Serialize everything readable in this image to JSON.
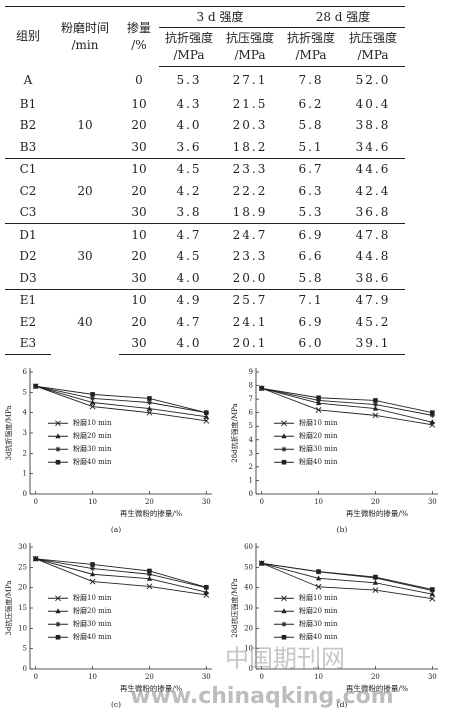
{
  "table": {
    "header": {
      "group": "组别",
      "time": "粉磨时间\n/min",
      "dosage": "掺量\n/%",
      "d3": "3 d 强度",
      "d28": "28 d 强度",
      "columns": [
        "抗折强度\n/MPa",
        "抗压强度\n/MPa",
        "抗折强度\n/MPa",
        "抗压强度\n/MPa"
      ]
    },
    "groups": [
      {
        "rows": [
          [
            "A",
            "0",
            "5.3",
            "27.1",
            "7.8",
            "52.0"
          ]
        ]
      },
      {
        "time": "10",
        "rows": [
          [
            "B1",
            "10",
            "4.3",
            "21.5",
            "6.2",
            "40.4"
          ],
          [
            "B2",
            "20",
            "4.0",
            "20.3",
            "5.8",
            "38.8"
          ],
          [
            "B3",
            "30",
            "3.6",
            "18.2",
            "5.1",
            "34.6"
          ]
        ]
      },
      {
        "time": "20",
        "rows": [
          [
            "C1",
            "10",
            "4.5",
            "23.3",
            "6.7",
            "44.6"
          ],
          [
            "C2",
            "20",
            "4.2",
            "22.2",
            "6.3",
            "42.4"
          ],
          [
            "C3",
            "30",
            "3.8",
            "18.9",
            "5.3",
            "36.8"
          ]
        ]
      },
      {
        "time": "30",
        "rows": [
          [
            "D1",
            "10",
            "4.7",
            "24.7",
            "6.9",
            "47.8"
          ],
          [
            "D2",
            "20",
            "4.5",
            "23.3",
            "6.6",
            "44.8"
          ],
          [
            "D3",
            "30",
            "4.0",
            "20.0",
            "5.8",
            "38.6"
          ]
        ]
      },
      {
        "time": "40",
        "rows": [
          [
            "E1",
            "10",
            "4.9",
            "25.7",
            "7.1",
            "47.9"
          ],
          [
            "E2",
            "20",
            "4.7",
            "24.1",
            "6.9",
            "45.2"
          ],
          [
            "E3",
            "30",
            "4.0",
            "20.1",
            "6.0",
            "39.1"
          ]
        ]
      }
    ]
  },
  "chart_data": [
    {
      "type": "line",
      "caption": "(a)",
      "x_label": "再生微粉的掺量/%",
      "y_label": "3d抗折强度/MPa",
      "x": [
        0,
        10,
        20,
        30
      ],
      "xlim": [
        -1,
        31
      ],
      "xticks": [
        0,
        10,
        20,
        30
      ],
      "ylim": [
        0,
        6
      ],
      "yticks": [
        0,
        1,
        2,
        3,
        4,
        5,
        6
      ],
      "legend": "center left",
      "series": [
        {
          "name": "粉磨10 min",
          "color": "#222222",
          "marker": "x",
          "values": [
            5.3,
            4.3,
            4.0,
            3.6
          ]
        },
        {
          "name": "粉磨20 min",
          "color": "#222222",
          "marker": "triangle",
          "values": [
            5.3,
            4.5,
            4.2,
            3.8
          ]
        },
        {
          "name": "粉磨30 min",
          "color": "#222222",
          "marker": "star",
          "values": [
            5.3,
            4.7,
            4.5,
            4.0
          ]
        },
        {
          "name": "粉磨40 min",
          "color": "#222222",
          "marker": "square",
          "values": [
            5.3,
            4.9,
            4.7,
            4.0
          ]
        }
      ]
    },
    {
      "type": "line",
      "caption": "(b)",
      "x_label": "再生微粉的掺量/%",
      "y_label": "28d抗折强度/MPa",
      "x": [
        0,
        10,
        20,
        30
      ],
      "xlim": [
        -1,
        31
      ],
      "xticks": [
        0,
        10,
        20,
        30
      ],
      "ylim": [
        0,
        9
      ],
      "yticks": [
        0,
        1,
        2,
        3,
        4,
        5,
        6,
        7,
        8,
        9
      ],
      "legend": "center left",
      "series": [
        {
          "name": "粉磨10 min",
          "color": "#222222",
          "marker": "x",
          "values": [
            7.8,
            6.2,
            5.8,
            5.1
          ]
        },
        {
          "name": "粉磨20 min",
          "color": "#222222",
          "marker": "triangle",
          "values": [
            7.8,
            6.7,
            6.3,
            5.3
          ]
        },
        {
          "name": "粉磨30 min",
          "color": "#222222",
          "marker": "star",
          "values": [
            7.8,
            6.9,
            6.6,
            5.8
          ]
        },
        {
          "name": "粉磨40 min",
          "color": "#222222",
          "marker": "square",
          "values": [
            7.8,
            7.1,
            6.9,
            6.0
          ]
        }
      ]
    },
    {
      "type": "line",
      "caption": "(c)",
      "x_label": "再生微粉的掺量/%",
      "y_label": "3d抗压强度/MPa",
      "x": [
        0,
        10,
        20,
        30
      ],
      "xlim": [
        -1,
        31
      ],
      "xticks": [
        0,
        10,
        20,
        30
      ],
      "ylim": [
        0,
        30
      ],
      "yticks": [
        0,
        5,
        10,
        15,
        20,
        25,
        30
      ],
      "legend": "center left",
      "series": [
        {
          "name": "粉磨10 min",
          "color": "#222222",
          "marker": "x",
          "values": [
            27.1,
            21.5,
            20.3,
            18.2
          ]
        },
        {
          "name": "粉磨20 min",
          "color": "#222222",
          "marker": "triangle",
          "values": [
            27.1,
            23.3,
            22.2,
            18.9
          ]
        },
        {
          "name": "粉磨30 min",
          "color": "#222222",
          "marker": "star",
          "values": [
            27.1,
            24.7,
            23.3,
            20.0
          ]
        },
        {
          "name": "粉磨40 min",
          "color": "#222222",
          "marker": "square",
          "values": [
            27.1,
            25.7,
            24.1,
            20.1
          ]
        }
      ]
    },
    {
      "type": "line",
      "caption": "(d)",
      "x_label": "再生微粉的掺量/%",
      "y_label": "28d抗压强度/MPa",
      "x": [
        0,
        10,
        20,
        30
      ],
      "xlim": [
        -1,
        31
      ],
      "xticks": [
        0,
        10,
        20,
        30
      ],
      "ylim": [
        0,
        60
      ],
      "yticks": [
        0,
        10,
        20,
        30,
        40,
        50,
        60
      ],
      "legend": "center left",
      "series": [
        {
          "name": "粉磨10 min",
          "color": "#222222",
          "marker": "x",
          "values": [
            52.0,
            40.4,
            38.8,
            34.6
          ]
        },
        {
          "name": "粉磨20 min",
          "color": "#222222",
          "marker": "triangle",
          "values": [
            52.0,
            44.6,
            42.4,
            36.8
          ]
        },
        {
          "name": "粉磨30 min",
          "color": "#222222",
          "marker": "star",
          "values": [
            52.0,
            47.8,
            44.8,
            38.6
          ]
        },
        {
          "name": "粉磨40 min",
          "color": "#222222",
          "marker": "square",
          "values": [
            52.0,
            47.9,
            45.2,
            39.1
          ]
        }
      ]
    }
  ],
  "watermark": {
    "site": "中国期刊网",
    "url": "www.chinaqking.com"
  }
}
